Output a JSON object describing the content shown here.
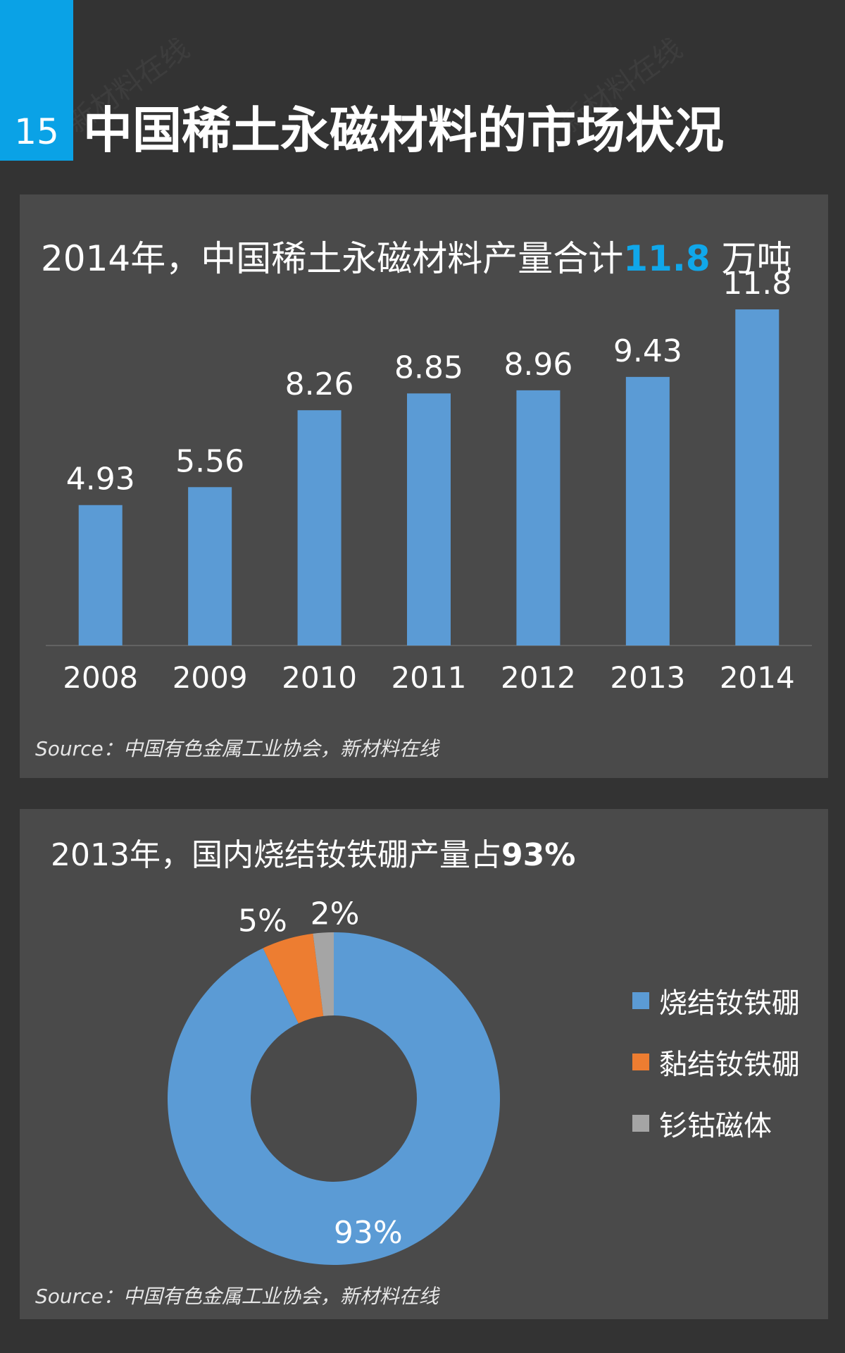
{
  "page": {
    "number": "15",
    "title": "中国稀土永磁材料的市场状况"
  },
  "bar_section": {
    "headline_prefix": "2014年，中国稀土永磁材料产量合计",
    "headline_value": "11.8",
    "headline_unit": " 万吨",
    "source": "Source：中国有色金属工业协会，新材料在线"
  },
  "donut_section": {
    "headline_prefix": "2013年，国内烧结钕铁硼产量占",
    "headline_pct": "93%",
    "source": "Source：中国有色金属工业协会，新材料在线"
  },
  "colors": {
    "accent": "#0aa2e6",
    "bar": "#5b9bd5",
    "slice_1": "#5b9bd5",
    "slice_2": "#ed7d31",
    "slice_3": "#a5a5a5"
  },
  "chart_data": [
    {
      "type": "bar",
      "categories": [
        "2008",
        "2009",
        "2010",
        "2011",
        "2012",
        "2013",
        "2014"
      ],
      "values": [
        4.93,
        5.56,
        8.26,
        8.85,
        8.96,
        9.43,
        11.8
      ],
      "data_labels": [
        "4.93",
        "5.56",
        "8.26",
        "8.85",
        "8.96",
        "9.43",
        "11.8"
      ],
      "ylim": [
        0,
        12
      ],
      "grid": false
    },
    {
      "type": "pie",
      "subtype": "donut",
      "series": [
        {
          "name": "烧结钕铁硼",
          "value": 93,
          "label": "93%",
          "color": "#5b9bd5"
        },
        {
          "name": "黏结钕铁硼",
          "value": 5,
          "label": "5%",
          "color": "#ed7d31"
        },
        {
          "name": "钐钴磁体",
          "value": 2,
          "label": "2%",
          "color": "#a5a5a5"
        }
      ],
      "legend_position": "right"
    }
  ]
}
